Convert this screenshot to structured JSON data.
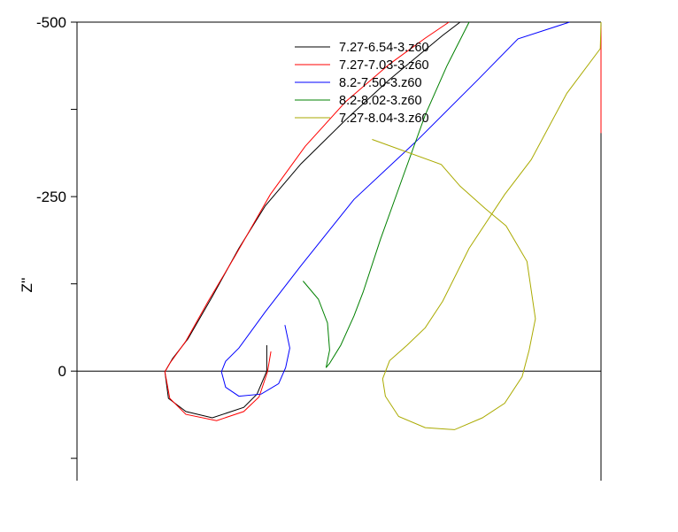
{
  "chart_data": {
    "type": "line",
    "title": "",
    "xlabel": "",
    "ylabel": "Z''",
    "xlim": [
      0,
      751
    ],
    "ylim": [
      -500,
      157
    ],
    "y_inverted": true,
    "yticks": [
      -500,
      -250,
      0
    ],
    "yticks_minor": [
      -375,
      -125,
      125
    ],
    "x_ticks_labeled": false,
    "zero_line": true,
    "grid": false,
    "legend_position": "top-center",
    "series": [
      {
        "name": "7.27-6.54-3.z60",
        "color": "#000000",
        "segments": [
          [
            [
              272,
              -37
            ],
            [
              272,
              0
            ],
            [
              258,
              33
            ],
            [
              239,
              52
            ],
            [
              194,
              67
            ],
            [
              156,
              58
            ],
            [
              131,
              39
            ],
            [
              126,
              1
            ],
            [
              137,
              -18
            ],
            [
              159,
              -46
            ],
            [
              194,
              -107
            ],
            [
              232,
              -176
            ],
            [
              270,
              -237
            ],
            [
              321,
              -297
            ],
            [
              385,
              -360
            ],
            [
              448,
              -418
            ],
            [
              524,
              -481
            ],
            [
              549,
              -500
            ]
          ]
        ]
      },
      {
        "name": "7.27-7.03-3.z60",
        "color": "#ff0000",
        "segments": [
          [
            [
              278,
              -28
            ],
            [
              273,
              1
            ],
            [
              261,
              37
            ],
            [
              239,
              58
            ],
            [
              200,
              71
            ],
            [
              156,
              62
            ],
            [
              133,
              39
            ],
            [
              126,
              1
            ],
            [
              133,
              -11
            ],
            [
              156,
              -43
            ],
            [
              188,
              -100
            ],
            [
              226,
              -164
            ],
            [
              277,
              -253
            ],
            [
              327,
              -322
            ],
            [
              385,
              -386
            ],
            [
              448,
              -440
            ],
            [
              499,
              -477
            ],
            [
              533,
              -500
            ]
          ],
          [
            [
              751,
              -494
            ],
            [
              751,
              -341
            ]
          ]
        ]
      },
      {
        "name": "8.2-7.50-3.z60",
        "color": "#0000ff",
        "segments": [
          [
            [
              298,
              -66
            ],
            [
              305,
              -33
            ],
            [
              299,
              -5
            ],
            [
              289,
              18
            ],
            [
              264,
              33
            ],
            [
              232,
              36
            ],
            [
              213,
              23
            ],
            [
              207,
              1
            ],
            [
              213,
              -14
            ],
            [
              232,
              -33
            ],
            [
              270,
              -85
            ],
            [
              321,
              -151
            ],
            [
              397,
              -246
            ],
            [
              486,
              -329
            ],
            [
              575,
              -418
            ],
            [
              632,
              -476
            ],
            [
              706,
              -500
            ]
          ]
        ]
      },
      {
        "name": "8.2-8.02-3.z60",
        "color": "#008000",
        "segments": [
          [
            [
              324,
              -129
            ],
            [
              346,
              -103
            ],
            [
              359,
              -69
            ],
            [
              362,
              -30
            ],
            [
              357,
              -5
            ],
            [
              362,
              -11
            ],
            [
              378,
              -37
            ],
            [
              397,
              -79
            ],
            [
              410,
              -113
            ],
            [
              435,
              -189
            ],
            [
              467,
              -278
            ],
            [
              499,
              -367
            ],
            [
              530,
              -437
            ],
            [
              562,
              -500
            ]
          ]
        ]
      },
      {
        "name": "7.27-8.04-3.z60",
        "color": "#aaaa00",
        "segments": [
          [
            [
              423,
              -332
            ],
            [
              522,
              -296
            ],
            [
              549,
              -265
            ],
            [
              585,
              -233
            ],
            [
              615,
              -208
            ],
            [
              645,
              -157
            ],
            [
              657,
              -75
            ],
            [
              648,
              -30
            ],
            [
              638,
              8
            ],
            [
              613,
              46
            ],
            [
              581,
              67
            ],
            [
              541,
              84
            ],
            [
              499,
              81
            ],
            [
              461,
              65
            ],
            [
              442,
              36
            ],
            [
              438,
              11
            ],
            [
              448,
              -15
            ],
            [
              473,
              -37
            ],
            [
              499,
              -62
            ],
            [
              524,
              -100
            ],
            [
              562,
              -176
            ],
            [
              613,
              -253
            ],
            [
              651,
              -303
            ],
            [
              702,
              -398
            ],
            [
              750,
              -462
            ],
            [
              751,
              -500
            ]
          ]
        ]
      }
    ]
  }
}
